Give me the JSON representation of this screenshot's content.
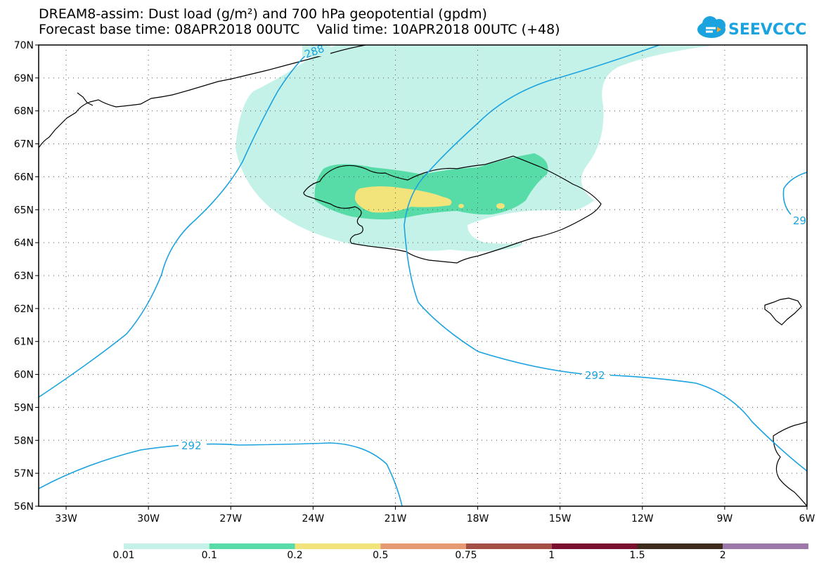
{
  "title": {
    "line1": "DREAM8-assim: Dust load (g/m²) and 700 hPa geopotential (gpdm)",
    "line2": "Forecast base time: 08APR2018 00UTC    Valid time: 10APR2018 00UTC (+48)"
  },
  "logo": {
    "text": "SEEVCCC",
    "icon": "cloud-icon",
    "color": "#1ba3e0"
  },
  "axes": {
    "lat_labels": [
      "70N",
      "69N",
      "68N",
      "67N",
      "66N",
      "65N",
      "64N",
      "63N",
      "62N",
      "61N",
      "60N",
      "59N",
      "58N",
      "57N",
      "56N"
    ],
    "lon_labels": [
      "33W",
      "30W",
      "27W",
      "24W",
      "21W",
      "18W",
      "15W",
      "12W",
      "9W",
      "6W"
    ],
    "lat_range": [
      56,
      70
    ],
    "lon_range": [
      -34.0,
      -6.0
    ]
  },
  "contours": {
    "color": "#1ba3e0",
    "labels": [
      "288",
      "292",
      "292",
      "29"
    ]
  },
  "legend": {
    "labels": [
      "0.01",
      "0.1",
      "0.2",
      "0.5",
      "0.75",
      "1",
      "1.5",
      "2"
    ],
    "colors": [
      "#c4f2e8",
      "#57dca8",
      "#f2e37a",
      "#e59a72",
      "#a34f46",
      "#7a0f30",
      "#3d2c1c",
      "#9c78a8"
    ]
  },
  "dust_colors": {
    "low": "#c4f2e8",
    "mid": "#57dca8",
    "high": "#f2e37a"
  }
}
